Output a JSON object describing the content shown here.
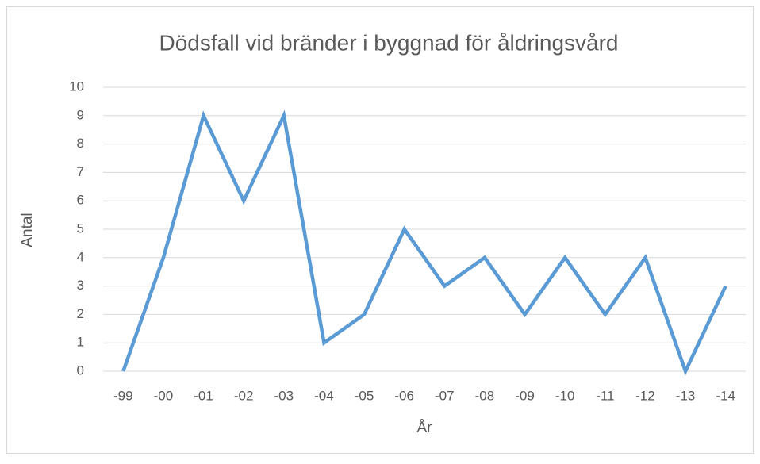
{
  "chart_data": {
    "type": "line",
    "title": "Dödsfall vid bränder i byggnad för åldringsvård",
    "xlabel": "År",
    "ylabel": "Antal",
    "categories": [
      "-99",
      "-00",
      "-01",
      "-02",
      "-03",
      "-04",
      "-05",
      "-06",
      "-07",
      "-08",
      "-09",
      "-10",
      "-11",
      "-12",
      "-13",
      "-14"
    ],
    "values": [
      0,
      4,
      9,
      6,
      9,
      1,
      2,
      5,
      3,
      4,
      2,
      4,
      2,
      4,
      0,
      3
    ],
    "color": "#5b9bd5",
    "ylim": [
      0,
      10
    ],
    "yticks": [
      0,
      1,
      2,
      3,
      4,
      5,
      6,
      7,
      8,
      9,
      10
    ],
    "grid": true
  }
}
